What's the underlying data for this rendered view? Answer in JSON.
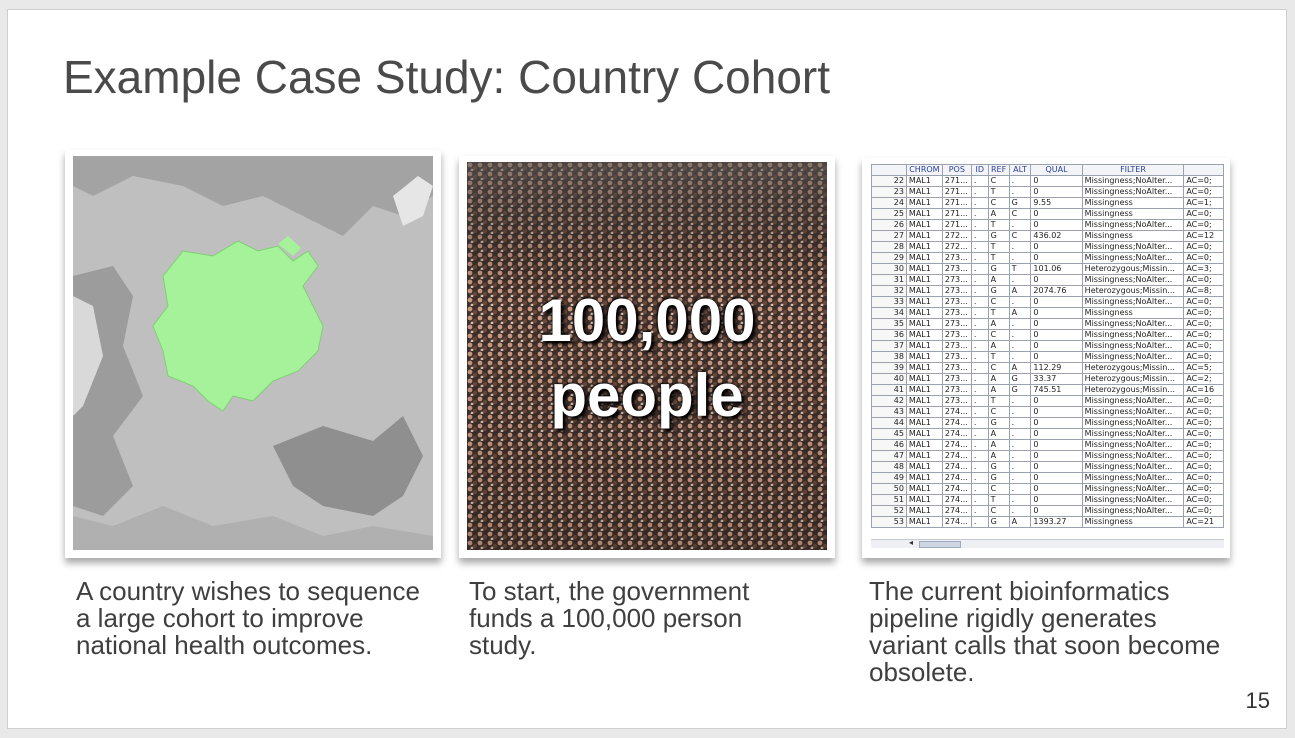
{
  "slide": {
    "title": "Example Case Study: Country Cohort",
    "page_number": "15"
  },
  "panels": {
    "map": {
      "caption": "A country wishes to sequence a large cohort to improve national health outcomes.",
      "highlight_color": "#a6f29a"
    },
    "crowd": {
      "line1": "100,000",
      "line2": "people",
      "caption": "To start, the government funds a 100,000 person study."
    },
    "table": {
      "caption": "The current bioinformatics pipeline rigidly generates variant calls that soon become obsolete.",
      "columns": [
        "",
        "CHROM",
        "POS",
        "ID",
        "REF",
        "ALT",
        "QUAL",
        "FILTER",
        ""
      ],
      "rows": [
        [
          "22",
          "MAL1",
          "271...",
          ".",
          "C",
          ".",
          "0",
          "Missingness;NoAlter...",
          "AC=0;"
        ],
        [
          "23",
          "MAL1",
          "271...",
          ".",
          "T",
          ".",
          "0",
          "Missingness;NoAlter...",
          "AC=0;"
        ],
        [
          "24",
          "MAL1",
          "271...",
          ".",
          "C",
          "G",
          "9.55",
          "Missingness",
          "AC=1;"
        ],
        [
          "25",
          "MAL1",
          "271...",
          ".",
          "A",
          "C",
          "0",
          "Missingness",
          "AC=0;"
        ],
        [
          "26",
          "MAL1",
          "271...",
          ".",
          "T",
          ".",
          "0",
          "Missingness;NoAlter...",
          "AC=0;"
        ],
        [
          "27",
          "MAL1",
          "272...",
          ".",
          "G",
          "C",
          "436.02",
          "Missingness",
          "AC=12"
        ],
        [
          "28",
          "MAL1",
          "272...",
          ".",
          "T",
          ".",
          "0",
          "Missingness;NoAlter...",
          "AC=0;"
        ],
        [
          "29",
          "MAL1",
          "273...",
          ".",
          "T",
          ".",
          "0",
          "Missingness;NoAlter...",
          "AC=0;"
        ],
        [
          "30",
          "MAL1",
          "273...",
          ".",
          "G",
          "T",
          "101.06",
          "Heterozygous;Missin...",
          "AC=3;"
        ],
        [
          "31",
          "MAL1",
          "273...",
          ".",
          "A",
          ".",
          "0",
          "Missingness;NoAlter...",
          "AC=0;"
        ],
        [
          "32",
          "MAL1",
          "273...",
          ".",
          "G",
          "A",
          "2074.76",
          "Heterozygous;Missin...",
          "AC=8;"
        ],
        [
          "33",
          "MAL1",
          "273...",
          ".",
          "C",
          ".",
          "0",
          "Missingness;NoAlter...",
          "AC=0;"
        ],
        [
          "34",
          "MAL1",
          "273...",
          ".",
          "T",
          "A",
          "0",
          "Missingness",
          "AC=0;"
        ],
        [
          "35",
          "MAL1",
          "273...",
          ".",
          "A",
          ".",
          "0",
          "Missingness;NoAlter...",
          "AC=0;"
        ],
        [
          "36",
          "MAL1",
          "273...",
          ".",
          "C",
          ".",
          "0",
          "Missingness;NoAlter...",
          "AC=0;"
        ],
        [
          "37",
          "MAL1",
          "273...",
          ".",
          "A",
          ".",
          "0",
          "Missingness;NoAlter...",
          "AC=0;"
        ],
        [
          "38",
          "MAL1",
          "273...",
          ".",
          "T",
          ".",
          "0",
          "Missingness;NoAlter...",
          "AC=0;"
        ],
        [
          "39",
          "MAL1",
          "273...",
          ".",
          "C",
          "A",
          "112.29",
          "Heterozygous;Missin...",
          "AC=5;"
        ],
        [
          "40",
          "MAL1",
          "273...",
          ".",
          "A",
          "G",
          "33.37",
          "Heterozygous;Missin...",
          "AC=2;"
        ],
        [
          "41",
          "MAL1",
          "273...",
          ".",
          "A",
          "G",
          "745.51",
          "Heterozygous;Missin...",
          "AC=16"
        ],
        [
          "42",
          "MAL1",
          "273...",
          ".",
          "T",
          ".",
          "0",
          "Missingness;NoAlter...",
          "AC=0;"
        ],
        [
          "43",
          "MAL1",
          "274...",
          ".",
          "C",
          ".",
          "0",
          "Missingness;NoAlter...",
          "AC=0;"
        ],
        [
          "44",
          "MAL1",
          "274...",
          ".",
          "G",
          ".",
          "0",
          "Missingness;NoAlter...",
          "AC=0;"
        ],
        [
          "45",
          "MAL1",
          "274...",
          ".",
          "A",
          ".",
          "0",
          "Missingness;NoAlter...",
          "AC=0;"
        ],
        [
          "46",
          "MAL1",
          "274...",
          ".",
          "A",
          ".",
          "0",
          "Missingness;NoAlter...",
          "AC=0;"
        ],
        [
          "47",
          "MAL1",
          "274...",
          ".",
          "A",
          ".",
          "0",
          "Missingness;NoAlter...",
          "AC=0;"
        ],
        [
          "48",
          "MAL1",
          "274...",
          ".",
          "G",
          ".",
          "0",
          "Missingness;NoAlter...",
          "AC=0;"
        ],
        [
          "49",
          "MAL1",
          "274...",
          ".",
          "G",
          ".",
          "0",
          "Missingness;NoAlter...",
          "AC=0;"
        ],
        [
          "50",
          "MAL1",
          "274...",
          ".",
          "C",
          ".",
          "0",
          "Missingness;NoAlter...",
          "AC=0;"
        ],
        [
          "51",
          "MAL1",
          "274...",
          ".",
          "T",
          ".",
          "0",
          "Missingness;NoAlter...",
          "AC=0;"
        ],
        [
          "52",
          "MAL1",
          "274...",
          ".",
          "C",
          ".",
          "0",
          "Missingness;NoAlter...",
          "AC=0;"
        ],
        [
          "53",
          "MAL1",
          "274...",
          ".",
          "G",
          "A",
          "1393.27",
          "Missingness",
          "AC=21"
        ]
      ]
    }
  }
}
